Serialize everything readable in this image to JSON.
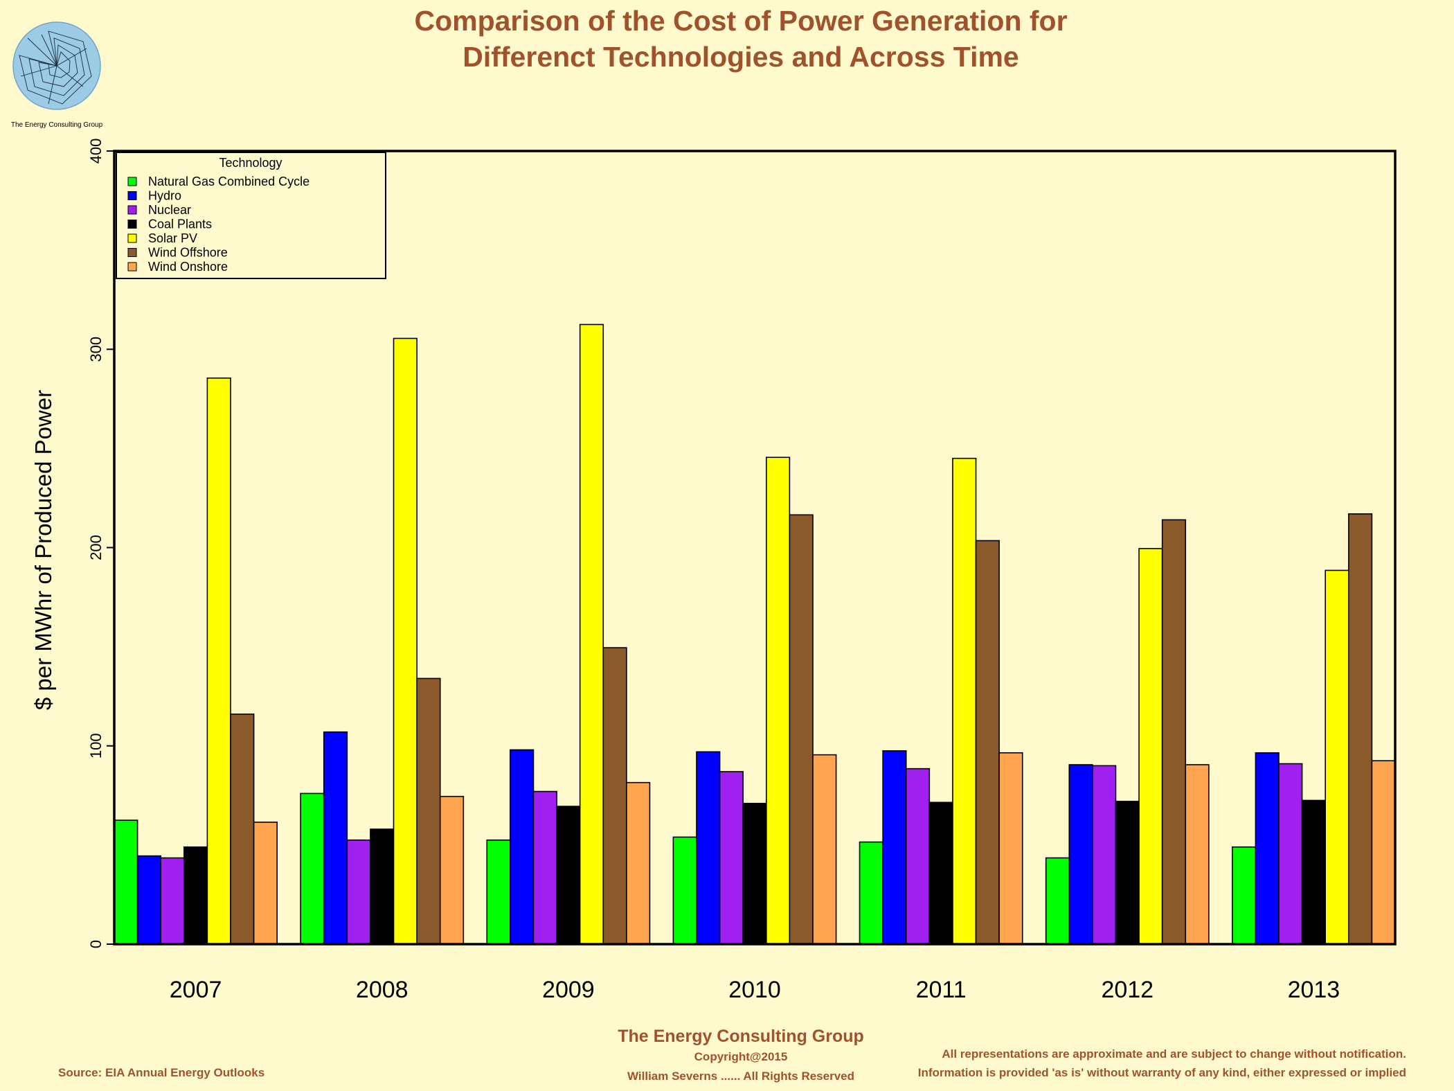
{
  "logo": {
    "caption": "The Energy Consulting Group"
  },
  "chart_data": {
    "type": "bar",
    "title_line1": "Comparison of the Cost of Power Generation for",
    "title_line2": "Differenct Technologies and Across Time",
    "xlabel": "",
    "ylabel": "$ per MWhr of Produced Power",
    "ylim": [
      0,
      400
    ],
    "yticks": [
      "0",
      "100",
      "200",
      "300",
      "400"
    ],
    "categories": [
      "2007",
      "2008",
      "2009",
      "2010",
      "2011",
      "2012",
      "2013"
    ],
    "legend_title": "Technology",
    "legend_position": "top-left",
    "series": [
      {
        "name": "Natural Gas Combined Cycle",
        "color": "#00ff00",
        "values": [
          62.5,
          76,
          52.5,
          54,
          51.5,
          43.5,
          49
        ]
      },
      {
        "name": "Hydro",
        "color": "#0000ff",
        "values": [
          44.5,
          107,
          98,
          97,
          97.5,
          90.5,
          96.5
        ]
      },
      {
        "name": "Nuclear",
        "color": "#a020f0",
        "values": [
          43.5,
          52.5,
          77,
          87,
          88.5,
          90,
          91
        ]
      },
      {
        "name": "Coal Plants",
        "color": "#000000",
        "values": [
          49,
          58,
          69.5,
          71,
          71.5,
          72,
          72.5
        ]
      },
      {
        "name": "Solar PV",
        "color": "#ffff00",
        "values": [
          285.5,
          305.5,
          312.5,
          245.5,
          245,
          199.5,
          188.5
        ]
      },
      {
        "name": "Wind Offshore",
        "color": "#8b5a2b",
        "values": [
          116,
          134,
          149.5,
          216.5,
          203.5,
          214,
          217
        ]
      },
      {
        "name": "Wind Onshore",
        "color": "#ffa54f",
        "values": [
          61.5,
          74.5,
          81.5,
          95.5,
          96.5,
          90.5,
          92.5
        ]
      }
    ]
  },
  "footer": {
    "org": "The Energy Consulting Group",
    "copyright": "Copyright@2015",
    "rights": "William Severns ...... All Rights Reserved",
    "source": "Source: EIA Annual Energy Outlooks",
    "disclaimer1": "All representations are approximate and are subject to change without notification.",
    "disclaimer2": "Information is provided 'as is' without warranty of any kind, either expressed or implied"
  }
}
